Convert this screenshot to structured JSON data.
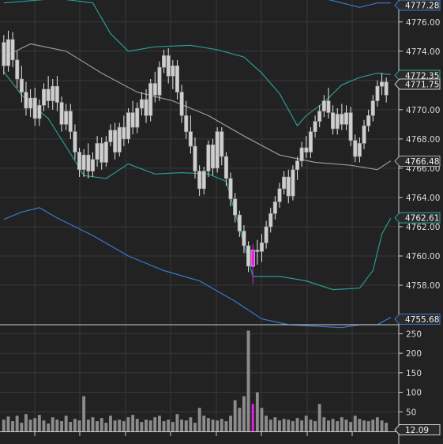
{
  "chart_data": {
    "type": "candlestick",
    "price_axis": {
      "ylim": [
        4755.3,
        4777.5
      ],
      "ticks": [
        "4776.00",
        "4774.00",
        "4772.00",
        "4770.00",
        "4768.00",
        "4766.00",
        "4764.00",
        "4762.00",
        "4760.00",
        "4758.00"
      ],
      "tick_values": [
        4776,
        4774,
        4772,
        4770,
        4768,
        4766,
        4764,
        4762,
        4760,
        4758
      ],
      "tags": [
        {
          "label": "4777.28",
          "value": 4777.28,
          "color": "#3a78d6"
        },
        {
          "label": "4772.35",
          "value": 4772.35,
          "color": "#2fa39a"
        },
        {
          "label": "4771.75",
          "value": 4771.75,
          "color": "#cfcfcf"
        },
        {
          "label": "4766.48",
          "value": 4766.48,
          "color": "#a9a9a9"
        },
        {
          "label": "4762.61",
          "value": 4762.61,
          "color": "#2fa39a"
        },
        {
          "label": "4755.68",
          "value": 4755.68,
          "color": "#3a78d6"
        }
      ]
    },
    "volume_axis": {
      "ylim": [
        0,
        265
      ],
      "ticks": [
        "250",
        "200",
        "150",
        "100",
        "50"
      ],
      "tick_values": [
        250,
        200,
        150,
        100,
        50
      ],
      "tag": {
        "label": "12.09",
        "value": 12.09
      }
    },
    "bars": [
      [
        4774.6,
        4775.1,
        4772.4,
        4773.0
      ],
      [
        4773.0,
        4775.4,
        4772.6,
        4774.8
      ],
      [
        4774.8,
        4775.3,
        4772.9,
        4773.4
      ],
      [
        4773.4,
        4774.0,
        4771.5,
        4772.1
      ],
      [
        4772.1,
        4773.0,
        4770.5,
        4771.2
      ],
      [
        4771.2,
        4771.9,
        4769.6,
        4770.1
      ],
      [
        4770.1,
        4771.4,
        4769.5,
        4770.8
      ],
      [
        4770.8,
        4771.5,
        4768.9,
        4769.4
      ],
      [
        4769.4,
        4770.7,
        4768.9,
        4770.3
      ],
      [
        4770.3,
        4771.8,
        4769.9,
        4771.4
      ],
      [
        4771.4,
        4772.3,
        4770.1,
        4770.6
      ],
      [
        4770.6,
        4772.1,
        4770.0,
        4771.6
      ],
      [
        4771.6,
        4772.3,
        4769.9,
        4770.5
      ],
      [
        4770.5,
        4770.9,
        4768.5,
        4769.0
      ],
      [
        4769.0,
        4770.4,
        4768.6,
        4769.9
      ],
      [
        4769.9,
        4770.4,
        4768.0,
        4768.5
      ],
      [
        4768.5,
        4769.0,
        4766.6,
        4767.1
      ],
      [
        4767.1,
        4767.4,
        4765.4,
        4765.9
      ],
      [
        4765.9,
        4767.3,
        4765.4,
        4766.9
      ],
      [
        4766.9,
        4767.7,
        4765.3,
        4765.8
      ],
      [
        4765.8,
        4767.1,
        4765.4,
        4766.6
      ],
      [
        4766.6,
        4768.2,
        4766.1,
        4767.7
      ],
      [
        4767.7,
        4768.1,
        4765.9,
        4766.4
      ],
      [
        4766.4,
        4768.2,
        4766.1,
        4767.8
      ],
      [
        4767.8,
        4769.0,
        4767.5,
        4768.6
      ],
      [
        4768.6,
        4769.1,
        4766.6,
        4767.1
      ],
      [
        4767.1,
        4769.1,
        4766.8,
        4768.8
      ],
      [
        4768.8,
        4769.6,
        4767.5,
        4768.0
      ],
      [
        4768.0,
        4770.1,
        4767.7,
        4769.8
      ],
      [
        4769.8,
        4770.6,
        4768.3,
        4768.8
      ],
      [
        4768.8,
        4770.5,
        4768.4,
        4770.1
      ],
      [
        4770.1,
        4771.2,
        4769.6,
        4770.7
      ],
      [
        4770.7,
        4771.4,
        4769.1,
        4769.6
      ],
      [
        4769.6,
        4772.1,
        4769.2,
        4771.8
      ],
      [
        4771.8,
        4772.6,
        4770.5,
        4771.0
      ],
      [
        4771.0,
        4773.3,
        4770.6,
        4772.9
      ],
      [
        4772.9,
        4774.1,
        4772.5,
        4773.7
      ],
      [
        4773.7,
        4774.2,
        4771.8,
        4772.3
      ],
      [
        4772.3,
        4773.4,
        4771.4,
        4773.0
      ],
      [
        4773.0,
        4773.4,
        4770.7,
        4771.2
      ],
      [
        4771.2,
        4771.7,
        4769.1,
        4769.6
      ],
      [
        4769.6,
        4770.6,
        4768.0,
        4768.5
      ],
      [
        4768.5,
        4769.6,
        4767.0,
        4767.5
      ],
      [
        4767.5,
        4768.1,
        4765.3,
        4765.8
      ],
      [
        4765.8,
        4766.2,
        4764.1,
        4764.6
      ],
      [
        4764.6,
        4766.1,
        4764.2,
        4765.8
      ],
      [
        4765.8,
        4767.9,
        4765.4,
        4767.6
      ],
      [
        4767.6,
        4768.0,
        4765.5,
        4766.0
      ],
      [
        4766.0,
        4768.8,
        4765.7,
        4768.5
      ],
      [
        4768.5,
        4768.8,
        4766.2,
        4766.8
      ],
      [
        4766.8,
        4767.1,
        4764.8,
        4765.3
      ],
      [
        4765.3,
        4765.7,
        4763.4,
        4763.9
      ],
      [
        4763.9,
        4764.3,
        4762.3,
        4762.8
      ],
      [
        4762.8,
        4763.1,
        4761.3,
        4761.7
      ],
      [
        4761.7,
        4762.1,
        4760.2,
        4760.7
      ],
      [
        4760.7,
        4761.0,
        4758.9,
        4759.3
      ],
      [
        4759.3,
        4760.8,
        4758.1,
        4760.4
      ],
      [
        4760.4,
        4761.1,
        4759.4,
        4760.3
      ],
      [
        4760.3,
        4761.5,
        4759.6,
        4760.9
      ],
      [
        4760.9,
        4762.4,
        4760.5,
        4762.0
      ],
      [
        4762.0,
        4763.3,
        4761.6,
        4762.9
      ],
      [
        4762.9,
        4764.1,
        4762.5,
        4763.7
      ],
      [
        4763.7,
        4765.0,
        4763.3,
        4764.6
      ],
      [
        4764.6,
        4765.8,
        4764.2,
        4765.4
      ],
      [
        4765.4,
        4765.9,
        4763.6,
        4764.1
      ],
      [
        4764.1,
        4766.2,
        4763.8,
        4765.9
      ],
      [
        4765.9,
        4766.8,
        4765.2,
        4766.5
      ],
      [
        4766.5,
        4767.8,
        4766.1,
        4767.4
      ],
      [
        4767.4,
        4768.2,
        4766.7,
        4767.1
      ],
      [
        4767.1,
        4768.8,
        4766.7,
        4768.5
      ],
      [
        4768.5,
        4769.6,
        4768.1,
        4769.2
      ],
      [
        4769.2,
        4770.3,
        4768.8,
        4769.9
      ],
      [
        4769.9,
        4771.0,
        4769.5,
        4770.6
      ],
      [
        4770.6,
        4771.5,
        4769.4,
        4769.8
      ],
      [
        4769.8,
        4770.3,
        4768.3,
        4768.7
      ],
      [
        4768.7,
        4770.1,
        4768.3,
        4769.7
      ],
      [
        4769.7,
        4770.4,
        4768.6,
        4769.0
      ],
      [
        4769.0,
        4770.3,
        4768.6,
        4769.8
      ],
      [
        4769.8,
        4770.2,
        4767.5,
        4767.9
      ],
      [
        4767.9,
        4768.3,
        4766.4,
        4766.8
      ],
      [
        4766.8,
        4768.1,
        4766.4,
        4767.7
      ],
      [
        4767.7,
        4769.3,
        4767.3,
        4768.9
      ],
      [
        4768.9,
        4770.0,
        4768.5,
        4769.6
      ],
      [
        4769.6,
        4771.0,
        4769.2,
        4770.6
      ],
      [
        4770.6,
        4772.0,
        4770.2,
        4771.6
      ],
      [
        4771.6,
        4772.5,
        4771.0,
        4771.9
      ],
      [
        4771.9,
        4772.2,
        4770.5,
        4771.0
      ]
    ],
    "highlight_bar_index": 56,
    "highlight_color": "#e51fe5",
    "volume": [
      30,
      38,
      26,
      40,
      22,
      44,
      30,
      34,
      42,
      28,
      20,
      36,
      30,
      26,
      40,
      24,
      32,
      28,
      90,
      30,
      36,
      26,
      34,
      22,
      40,
      28,
      30,
      26,
      36,
      42,
      32,
      24,
      30,
      28,
      36,
      40,
      26,
      30,
      24,
      44,
      30,
      28,
      36,
      22,
      60,
      40,
      34,
      30,
      28,
      32,
      26,
      40,
      80,
      60,
      90,
      258,
      70,
      100,
      60,
      40,
      30,
      36,
      28,
      32,
      30,
      26,
      34,
      28,
      40,
      30,
      26,
      70,
      36,
      28,
      32,
      26,
      36,
      30,
      24,
      40,
      32,
      28,
      26,
      30,
      36,
      28,
      22
    ],
    "overlays": [
      {
        "color": "#9a9a9a",
        "points": [
          [
            0,
            4773.6
          ],
          [
            6,
            4774.5
          ],
          [
            14,
            4774.0
          ],
          [
            22,
            4772.5
          ],
          [
            30,
            4771.2
          ],
          [
            38,
            4770.6
          ],
          [
            46,
            4769.6
          ],
          [
            54,
            4768.2
          ],
          [
            62,
            4766.9
          ],
          [
            70,
            4766.4
          ],
          [
            78,
            4766.2
          ],
          [
            84,
            4765.9
          ],
          [
            87,
            4766.5
          ]
        ]
      },
      {
        "color": "#2a9a94",
        "points": [
          [
            0,
            4772.6
          ],
          [
            4,
            4771.0
          ],
          [
            10,
            4769.4
          ],
          [
            15,
            4767.0
          ],
          [
            18,
            4765.5
          ],
          [
            23,
            4765.3
          ],
          [
            28,
            4766.3
          ],
          [
            34,
            4765.6
          ],
          [
            40,
            4765.7
          ],
          [
            46,
            4765.6
          ],
          [
            50,
            4765.1
          ],
          [
            53,
            4761.9
          ],
          [
            56,
            4758.6
          ],
          [
            62,
            4758.6
          ],
          [
            68,
            4758.3
          ],
          [
            74,
            4757.7
          ],
          [
            80,
            4757.8
          ],
          [
            83,
            4759.0
          ],
          [
            85,
            4761.5
          ],
          [
            87,
            4762.6
          ]
        ]
      },
      {
        "color": "#2a9a94",
        "points": [
          [
            0,
            4777.3
          ],
          [
            12,
            4777.6
          ],
          [
            20,
            4777.3
          ],
          [
            24,
            4775.2
          ],
          [
            28,
            4774.0
          ],
          [
            34,
            4774.3
          ],
          [
            42,
            4774.4
          ],
          [
            48,
            4774.1
          ],
          [
            54,
            4773.6
          ],
          [
            58,
            4772.5
          ],
          [
            62,
            4771.1
          ],
          [
            66,
            4768.9
          ],
          [
            68,
            4769.6
          ],
          [
            72,
            4770.5
          ],
          [
            76,
            4771.7
          ],
          [
            80,
            4772.2
          ],
          [
            84,
            4772.5
          ],
          [
            87,
            4772.4
          ]
        ]
      },
      {
        "color": "#3a78d6",
        "points": [
          [
            0,
            4762.5
          ],
          [
            4,
            4763.0
          ],
          [
            8,
            4763.3
          ],
          [
            12,
            4762.6
          ],
          [
            20,
            4761.4
          ],
          [
            28,
            4760.0
          ],
          [
            36,
            4759.0
          ],
          [
            44,
            4758.3
          ],
          [
            52,
            4756.9
          ],
          [
            58,
            4755.7
          ],
          [
            64,
            4755.3
          ],
          [
            70,
            4755.2
          ],
          [
            76,
            4755.1
          ],
          [
            80,
            4755.3
          ],
          [
            84,
            4755.3
          ],
          [
            87,
            4755.8
          ]
        ]
      },
      {
        "color": "#3a78d6",
        "points": [
          [
            72,
            4777.6
          ],
          [
            76,
            4777.3
          ],
          [
            80,
            4777.0
          ],
          [
            84,
            4777.3
          ],
          [
            87,
            4777.3
          ]
        ]
      }
    ],
    "grid": true
  }
}
